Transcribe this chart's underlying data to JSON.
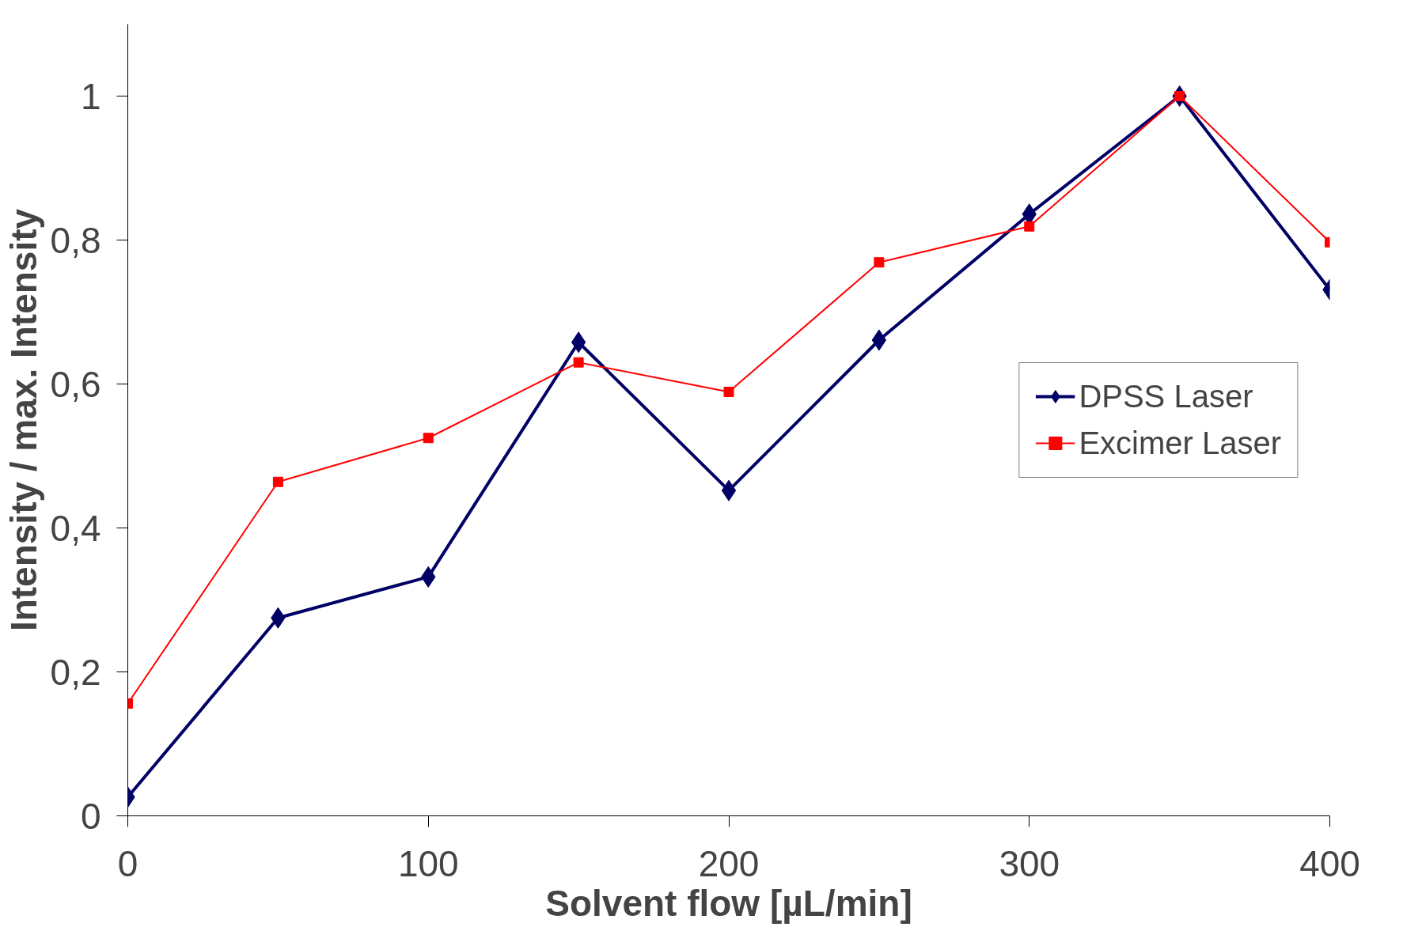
{
  "chart_data": {
    "type": "line",
    "xlabel": "Solvent flow [µL/min]",
    "ylabel": "Intensity / max. Intensity",
    "x": [
      0,
      50,
      100,
      150,
      200,
      250,
      300,
      350,
      400
    ],
    "series": [
      {
        "name": "DPSS Laser",
        "color": "#000066",
        "marker": "diamond",
        "values": [
          0.026,
          0.275,
          0.332,
          0.658,
          0.452,
          0.661,
          0.836,
          1.0,
          0.731
        ]
      },
      {
        "name": "Excimer Laser",
        "color": "#ff0000",
        "marker": "square",
        "values": [
          0.156,
          0.464,
          0.525,
          0.63,
          0.589,
          0.769,
          0.819,
          1.0,
          0.797
        ]
      }
    ],
    "xlim": [
      0,
      400
    ],
    "xticks": [
      0,
      100,
      200,
      300,
      400
    ],
    "ylim": [
      0,
      1.1
    ],
    "yticks": [
      0,
      {
        "value": 0.2,
        "label": "0,2"
      },
      {
        "value": 0.4,
        "label": "0,4"
      },
      {
        "value": 0.6,
        "label": "0,6"
      },
      {
        "value": 0.8,
        "label": "0,8"
      },
      1
    ],
    "grid": false,
    "legend": "right"
  }
}
